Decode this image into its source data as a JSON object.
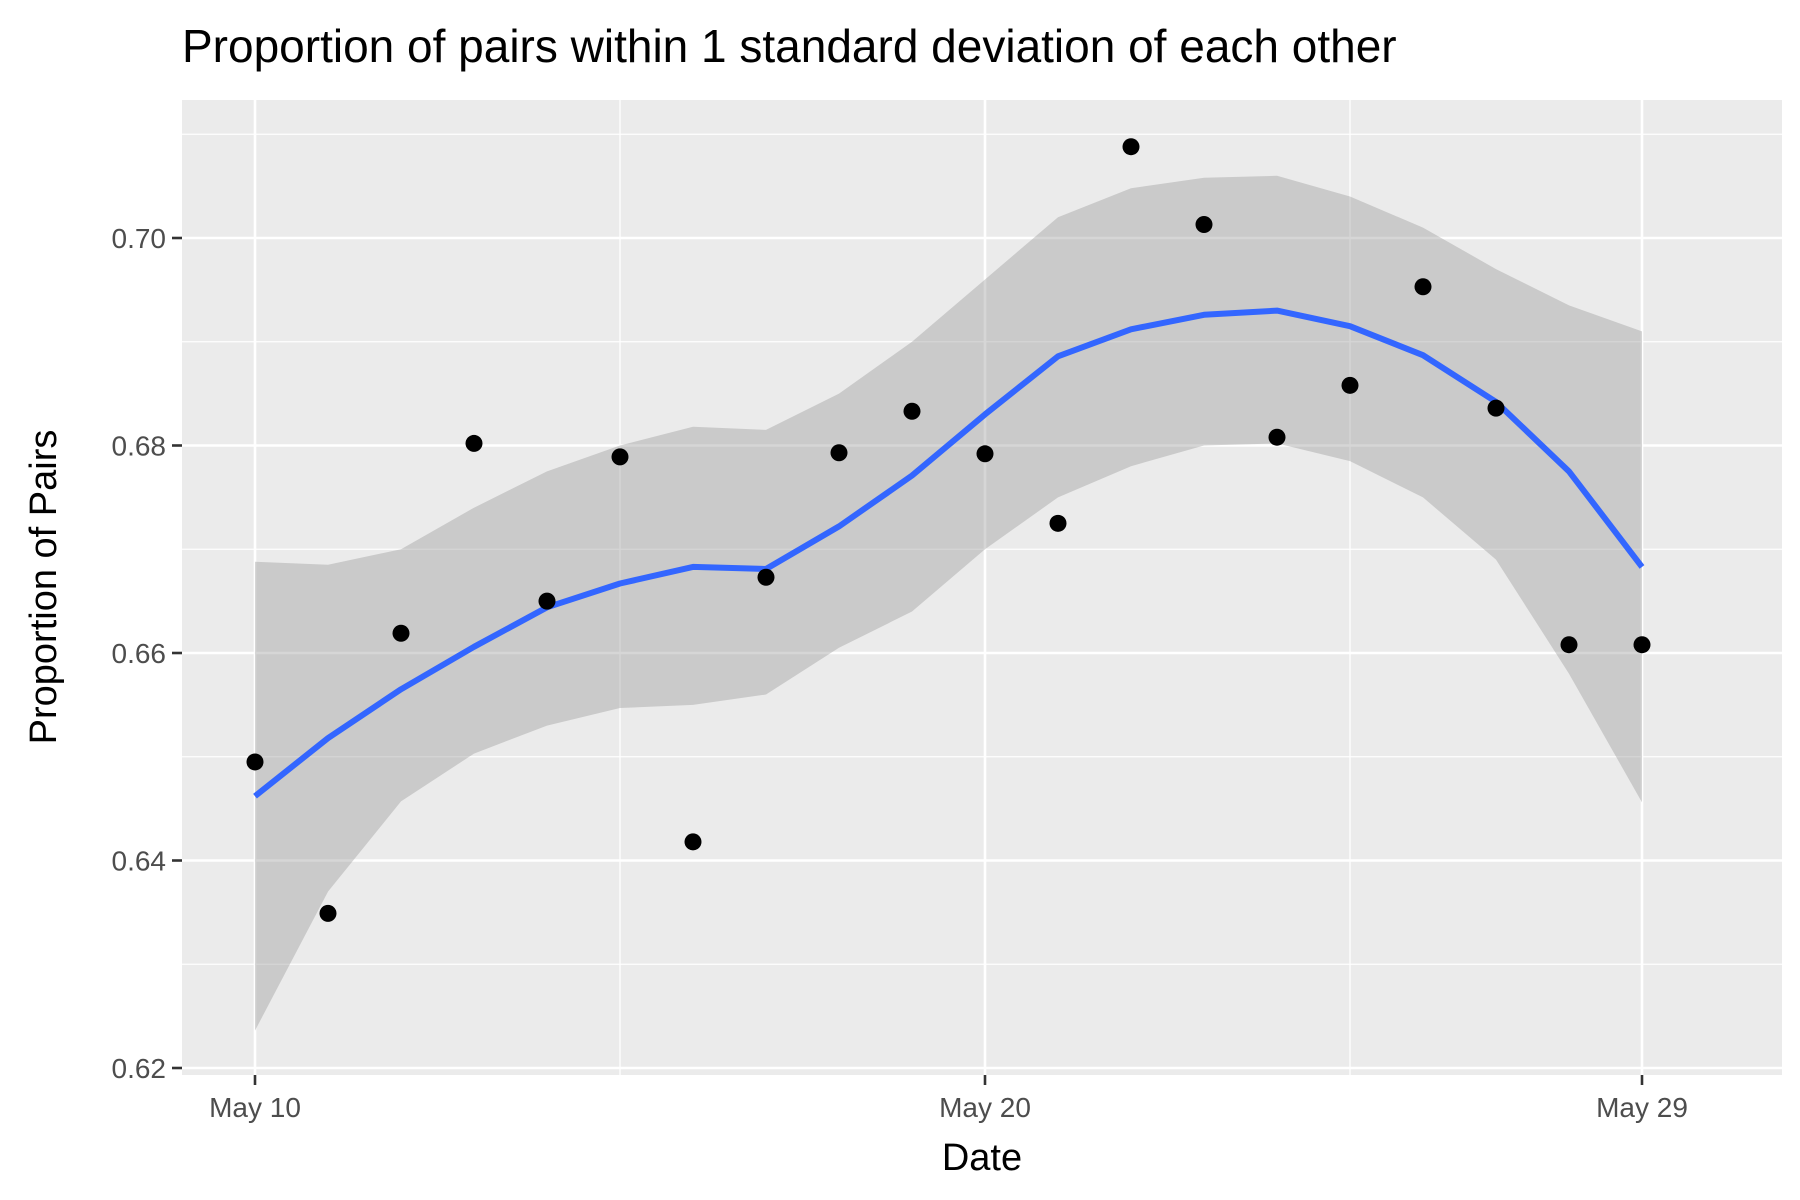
{
  "chart_data": {
    "type": "scatter",
    "title": "Proportion of pairs within 1 standard deviation of each other",
    "xlabel": "Date",
    "ylabel": "Proportion of Pairs",
    "x_tick_labels": [
      "May 10",
      "May 20",
      "May 29"
    ],
    "y_tick_labels": [
      "0.62",
      "0.64",
      "0.66",
      "0.68",
      "0.70"
    ],
    "xlim": [
      "2020-05-09",
      "2020-05-29"
    ],
    "ylim": [
      0.62,
      0.711
    ],
    "grid": true,
    "legend": "none",
    "series": [
      {
        "type": "points",
        "x": [
          "2020-05-10",
          "2020-05-11",
          "2020-05-12",
          "2020-05-13",
          "2020-05-14",
          "2020-05-15",
          "2020-05-16",
          "2020-05-17",
          "2020-05-18",
          "2020-05-19",
          "2020-05-20",
          "2020-05-21",
          "2020-05-22",
          "2020-05-23",
          "2020-05-24",
          "2020-05-25",
          "2020-05-26",
          "2020-05-27",
          "2020-05-28",
          "2020-05-29"
        ],
        "y": [
          0.6495,
          0.6349,
          0.6619,
          0.6802,
          0.665,
          0.6789,
          0.6418,
          0.6673,
          0.6793,
          0.6833,
          0.6792,
          0.6725,
          0.7088,
          0.7013,
          0.6808,
          0.6858,
          0.6953,
          0.6836,
          0.6608,
          0.6608
        ],
        "color": "#000000"
      },
      {
        "type": "smooth",
        "x": [
          "2020-05-10",
          "2020-05-11",
          "2020-05-12",
          "2020-05-13",
          "2020-05-14",
          "2020-05-15",
          "2020-05-16",
          "2020-05-17",
          "2020-05-18",
          "2020-05-19",
          "2020-05-20",
          "2020-05-21",
          "2020-05-22",
          "2020-05-23",
          "2020-05-24",
          "2020-05-25",
          "2020-05-26",
          "2020-05-27",
          "2020-05-28",
          "2020-05-29"
        ],
        "y": [
          0.6462,
          0.6518,
          0.6565,
          0.6606,
          0.6644,
          0.6667,
          0.6683,
          0.6681,
          0.6722,
          0.6771,
          0.683,
          0.6886,
          0.6912,
          0.6926,
          0.693,
          0.6915,
          0.6887,
          0.6842,
          0.6775,
          0.6683
        ],
        "ci_lower": [
          0.6236,
          0.637,
          0.6457,
          0.6503,
          0.653,
          0.6547,
          0.655,
          0.656,
          0.6605,
          0.664,
          0.67,
          0.675,
          0.678,
          0.68,
          0.6802,
          0.6785,
          0.675,
          0.669,
          0.658,
          0.6456
        ],
        "ci_upper": [
          0.6688,
          0.6685,
          0.67,
          0.674,
          0.6775,
          0.68,
          0.6818,
          0.6815,
          0.685,
          0.69,
          0.696,
          0.702,
          0.7048,
          0.7058,
          0.706,
          0.704,
          0.701,
          0.697,
          0.6935,
          0.691
        ],
        "color": "#3366ff",
        "band_color": "#bfbfbf"
      }
    ]
  }
}
